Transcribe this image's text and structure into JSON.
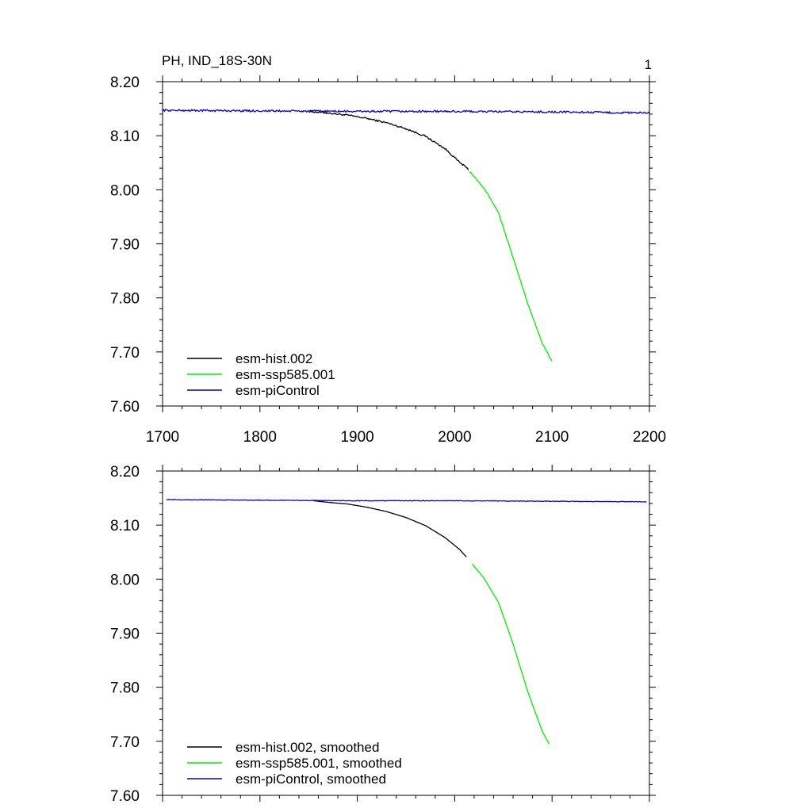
{
  "figure": {
    "title": "PH, IND_18S-30N",
    "page_number": "1"
  },
  "chart_data": [
    {
      "type": "line",
      "title": "PH, IND_18S-30N",
      "xlabel": "",
      "ylabel": "",
      "xlim": [
        1700,
        2200
      ],
      "ylim": [
        7.6,
        8.2
      ],
      "x_ticks": [
        1700,
        1800,
        1900,
        2000,
        2100,
        2200
      ],
      "x_tick_labels": [
        "1700",
        "1800",
        "1900",
        "2000",
        "2100",
        "2200"
      ],
      "y_ticks": [
        7.6,
        7.7,
        7.8,
        7.9,
        8.0,
        8.1,
        8.2
      ],
      "y_tick_labels": [
        "7.60",
        "7.70",
        "7.80",
        "7.90",
        "8.00",
        "8.10",
        "8.20"
      ],
      "grid": false,
      "legend_position": "bottom-left",
      "series": [
        {
          "name": "esm-hist.002",
          "color": "#000000",
          "noise": 0.0015,
          "points": [
            [
              1850,
              8.145
            ],
            [
              1870,
              8.142
            ],
            [
              1890,
              8.138
            ],
            [
              1910,
              8.132
            ],
            [
              1930,
              8.124
            ],
            [
              1950,
              8.113
            ],
            [
              1970,
              8.099
            ],
            [
              1990,
              8.076
            ],
            [
              2005,
              8.051
            ],
            [
              2014,
              8.038
            ]
          ]
        },
        {
          "name": "esm-ssp585.001",
          "color": "#00ee00",
          "noise": 0.0015,
          "points": [
            [
              2015,
              8.035
            ],
            [
              2030,
              8.004
            ],
            [
              2045,
              7.958
            ],
            [
              2060,
              7.874
            ],
            [
              2075,
              7.79
            ],
            [
              2090,
              7.716
            ],
            [
              2100,
              7.682
            ]
          ]
        },
        {
          "name": "esm-piControl",
          "color": "#0000cc",
          "noise": 0.0018,
          "points": [
            [
              1700,
              8.147
            ],
            [
              1800,
              8.146
            ],
            [
              1900,
              8.145
            ],
            [
              2000,
              8.145
            ],
            [
              2100,
              8.144
            ],
            [
              2200,
              8.142
            ]
          ]
        }
      ]
    },
    {
      "type": "line",
      "title": "",
      "xlabel": "",
      "ylabel": "",
      "xlim": [
        1700,
        2200
      ],
      "ylim": [
        7.6,
        8.2
      ],
      "x_ticks": [
        1700,
        1800,
        1900,
        2000,
        2100,
        2200
      ],
      "y_ticks": [
        7.6,
        7.7,
        7.8,
        7.9,
        8.0,
        8.1,
        8.2
      ],
      "y_tick_labels": [
        "7.60",
        "7.70",
        "7.80",
        "7.90",
        "8.00",
        "8.10",
        "8.20"
      ],
      "grid": false,
      "legend_position": "bottom-left",
      "series": [
        {
          "name": "esm-hist.002, smoothed",
          "color": "#000000",
          "noise": 0,
          "points": [
            [
              1855,
              8.145
            ],
            [
              1870,
              8.142
            ],
            [
              1890,
              8.139
            ],
            [
              1910,
              8.133
            ],
            [
              1930,
              8.125
            ],
            [
              1950,
              8.114
            ],
            [
              1970,
              8.099
            ],
            [
              1990,
              8.077
            ],
            [
              2005,
              8.055
            ],
            [
              2012,
              8.041
            ]
          ]
        },
        {
          "name": "esm-ssp585.001, smoothed",
          "color": "#00ee00",
          "noise": 0,
          "points": [
            [
              2018,
              8.028
            ],
            [
              2030,
              8.002
            ],
            [
              2045,
              7.957
            ],
            [
              2060,
              7.88
            ],
            [
              2075,
              7.792
            ],
            [
              2090,
              7.718
            ],
            [
              2097,
              7.695
            ]
          ]
        },
        {
          "name": "esm-piControl, smoothed",
          "color": "#0000cc",
          "noise": 0.0005,
          "points": [
            [
              1704,
              8.147
            ],
            [
              1800,
              8.146
            ],
            [
              1900,
              8.145
            ],
            [
              2000,
              8.145
            ],
            [
              2100,
              8.144
            ],
            [
              2197,
              8.143
            ]
          ]
        }
      ]
    }
  ]
}
